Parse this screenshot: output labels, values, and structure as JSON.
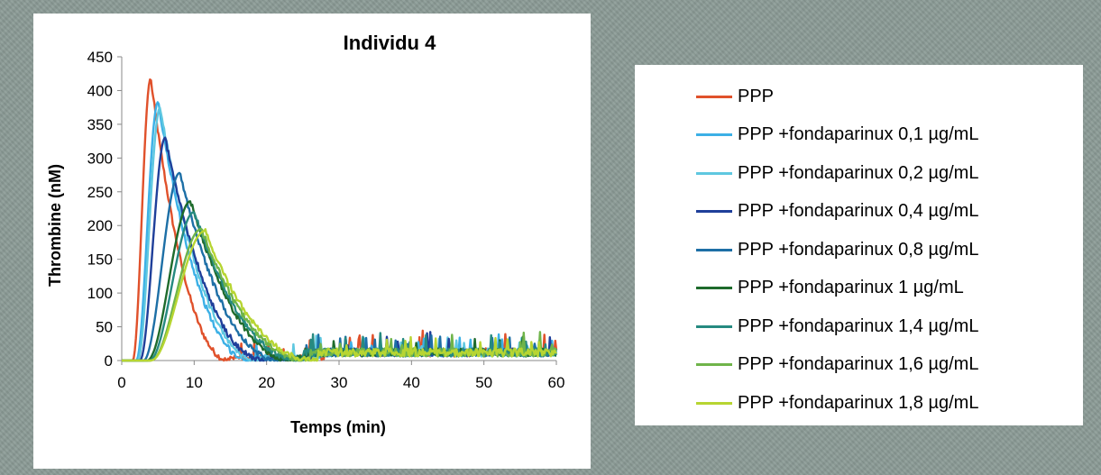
{
  "chart_data": {
    "type": "line",
    "title": "Individu 4",
    "xlabel": "Temps (min)",
    "ylabel": "Thrombine (nM)",
    "xlim": [
      0,
      60
    ],
    "ylim": [
      0,
      450
    ],
    "x_ticks": [
      0,
      10,
      20,
      30,
      40,
      50,
      60
    ],
    "y_ticks": [
      0,
      50,
      100,
      150,
      200,
      250,
      300,
      350,
      400,
      450
    ],
    "grid": false,
    "legend_placement": "right",
    "series": [
      {
        "name": "PPP",
        "color": "#e0512b",
        "onset": 1.5,
        "peak_time": 4.0,
        "peak": 418,
        "end": 15
      },
      {
        "name": "PPP +fondaparinux 0,1 µg/mL",
        "color": "#3cb0e6",
        "onset": 2.0,
        "peak_time": 5.0,
        "peak": 383,
        "end": 18
      },
      {
        "name": "PPP +fondaparinux 0,2 µg/mL",
        "color": "#5fc8e0",
        "onset": 2.2,
        "peak_time": 5.3,
        "peak": 375,
        "end": 19
      },
      {
        "name": "PPP +fondaparinux 0,4 µg/mL",
        "color": "#1f3f9a",
        "onset": 2.5,
        "peak_time": 6.0,
        "peak": 330,
        "end": 20
      },
      {
        "name": "PPP +fondaparinux 0,8 µg/mL",
        "color": "#1d6fa6",
        "onset": 3.0,
        "peak_time": 8.0,
        "peak": 278,
        "end": 22
      },
      {
        "name": "PPP +fondaparinux 1 µg/mL",
        "color": "#1e6b2c",
        "onset": 3.5,
        "peak_time": 9.5,
        "peak": 236,
        "end": 24
      },
      {
        "name": "PPP +fondaparinux 1,4 µg/mL",
        "color": "#268a80",
        "onset": 3.8,
        "peak_time": 10.0,
        "peak": 220,
        "end": 25
      },
      {
        "name": "PPP +fondaparinux 1,6 µg/mL",
        "color": "#6fb44a",
        "onset": 4.0,
        "peak_time": 11.0,
        "peak": 195,
        "end": 26
      },
      {
        "name": "PPP +fondaparinux 1,8 µg/mL",
        "color": "#b7d532",
        "onset": 4.0,
        "peak_time": 11.5,
        "peak": 192,
        "end": 27
      }
    ]
  }
}
